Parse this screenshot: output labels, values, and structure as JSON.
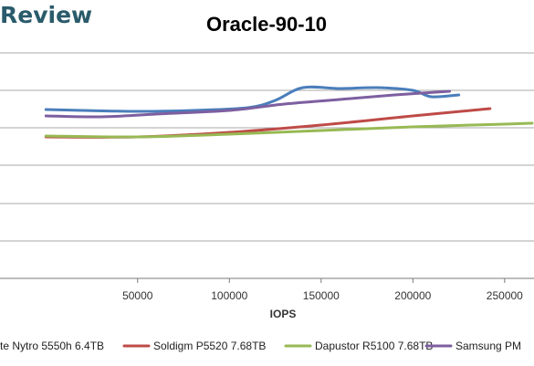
{
  "brand": {
    "visible_text": "Review"
  },
  "chart_data": {
    "type": "line",
    "title": "Oracle-90-10",
    "xlabel": "IOPS",
    "ylabel": "",
    "x_ticks": [
      50000,
      100000,
      150000,
      200000,
      250000
    ],
    "x_tick_labels": [
      "50000",
      "100000",
      "150000",
      "200000",
      "250000"
    ],
    "grid": "horizontal",
    "legend_position": "bottom",
    "series": [
      {
        "name": "te Nytro 5550h 6.4TB",
        "color": "#4a7ebb",
        "points": [
          [
            0,
            120
          ],
          [
            20000,
            121
          ],
          [
            50000,
            122
          ],
          [
            80000,
            121
          ],
          [
            110000,
            118
          ],
          [
            125000,
            110
          ],
          [
            140000,
            96
          ],
          [
            160000,
            97
          ],
          [
            180000,
            96
          ],
          [
            200000,
            99
          ],
          [
            210000,
            106
          ],
          [
            225000,
            104
          ]
        ]
      },
      {
        "name": "Soldigm P5520 7.68TB",
        "color": "#be4b48",
        "points": [
          [
            0,
            150
          ],
          [
            50000,
            150
          ],
          [
            100000,
            145
          ],
          [
            150000,
            137
          ],
          [
            200000,
            127
          ],
          [
            242000,
            119
          ]
        ]
      },
      {
        "name": "Dapustor R5100 7.68TB",
        "color": "#98b954",
        "points": [
          [
            0,
            149
          ],
          [
            50000,
            150
          ],
          [
            100000,
            147
          ],
          [
            150000,
            143
          ],
          [
            200000,
            139
          ],
          [
            250000,
            136
          ],
          [
            265000,
            135
          ]
        ]
      },
      {
        "name": "Samsung PM",
        "color": "#7d5fa0",
        "points": [
          [
            0,
            127
          ],
          [
            30000,
            128
          ],
          [
            60000,
            125
          ],
          [
            100000,
            121
          ],
          [
            130000,
            114
          ],
          [
            160000,
            109
          ],
          [
            190000,
            104
          ],
          [
            220000,
            100
          ]
        ]
      }
    ]
  }
}
